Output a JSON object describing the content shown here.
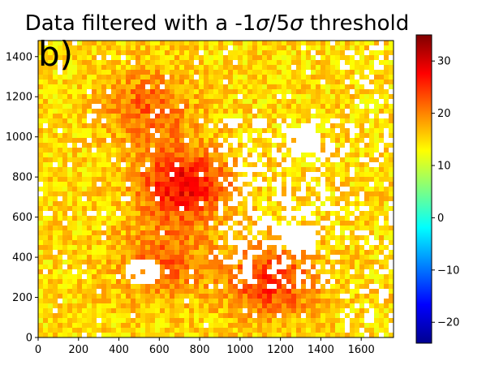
{
  "chart_data": {
    "type": "heatmap",
    "title_prefix": "Data filtered with a -1",
    "title_sigma": "σ",
    "title_mid": "/5",
    "title_suffix": " threshold",
    "panel_label": "b)",
    "xlabel": "",
    "ylabel": "",
    "xlim": [
      0,
      1760
    ],
    "ylim": [
      0,
      1480
    ],
    "x_ticks": [
      0,
      200,
      400,
      600,
      800,
      1000,
      1200,
      1400,
      1600
    ],
    "y_ticks": [
      0,
      200,
      400,
      600,
      800,
      1000,
      1200,
      1400
    ],
    "colorbar": {
      "colormap": "jet",
      "range": [
        -24,
        35
      ],
      "ticks": [
        -20,
        -10,
        0,
        10,
        20,
        30
      ],
      "tick_labels": [
        "−20",
        "−10",
        "0",
        "10",
        "20",
        "30"
      ]
    },
    "background_level": 15,
    "warm_regions": [
      {
        "x": 720,
        "y": 760,
        "value": 28
      },
      {
        "x": 550,
        "y": 1150,
        "value": 22
      },
      {
        "x": 1150,
        "y": 280,
        "value": 25
      },
      {
        "x": 620,
        "y": 370,
        "value": 22
      }
    ],
    "filtered_out_regions": [
      {
        "x": 1310,
        "y": 990,
        "note": "white (masked)"
      },
      {
        "x": 520,
        "y": 330,
        "note": "white (masked)"
      },
      {
        "x": 1300,
        "y": 500,
        "note": "white (masked)"
      }
    ]
  },
  "colors": {
    "background": "#ffffff",
    "masked": "#ffffff",
    "axis": "#000000"
  }
}
